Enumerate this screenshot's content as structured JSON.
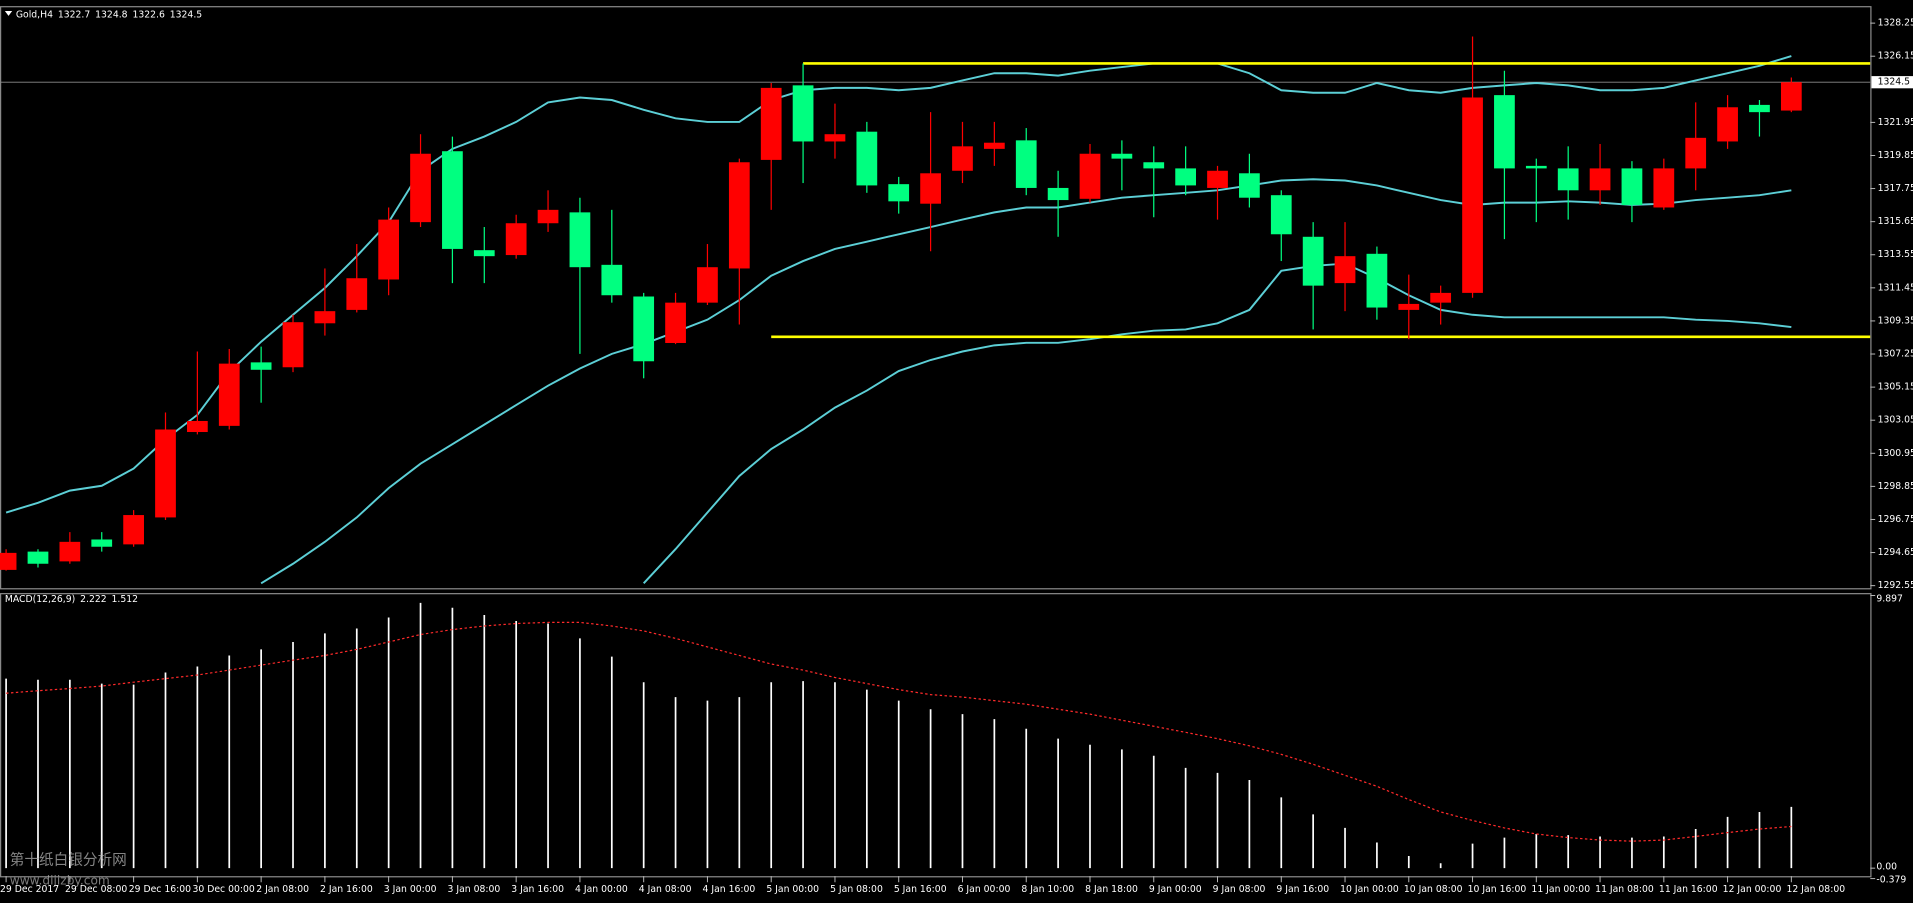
{
  "chart_data": [
    {
      "type": "candlestick",
      "title": "Gold,H4",
      "categories": [
        "29 Dec 2017",
        null,
        "29 Dec 08:00",
        null,
        "29 Dec 16:00",
        null,
        "30 Dec 00:00",
        null,
        "2 Jan 08:00",
        null,
        "2 Jan 16:00",
        null,
        "3 Jan 00:00",
        null,
        "3 Jan 08:00",
        null,
        "3 Jan 16:00",
        null,
        "4 Jan 00:00",
        null,
        "4 Jan 08:00",
        null,
        "4 Jan 16:00",
        null,
        "5 Jan 00:00",
        null,
        "5 Jan 08:00",
        null,
        "5 Jan 16:00",
        null,
        "6 Jan 00:00",
        null,
        "8 Jan 10:00",
        null,
        "8 Jan 18:00",
        null,
        "9 Jan 00:00",
        null,
        "9 Jan 08:00",
        null,
        "9 Jan 16:00",
        null,
        "10 Jan 00:00",
        null,
        "10 Jan 08:00",
        null,
        "10 Jan 16:00",
        null,
        "11 Jan 00:00",
        null,
        "11 Jan 08:00",
        null,
        "11 Jan 16:00",
        null,
        "12 Jan 00:00",
        null,
        "12 Jan 08:00"
      ],
      "open": [
        1293.55,
        1294.71,
        1294.09,
        1295.48,
        1295.17,
        1296.88,
        1302.3,
        1302.69,
        1306.72,
        1306.41,
        1309.2,
        1310.05,
        1311.98,
        1315.62,
        1320.12,
        1313.84,
        1313.53,
        1315.55,
        1316.24,
        1312.91,
        1310.9,
        1307.95,
        1310.51,
        1312.68,
        1319.57,
        1324.3,
        1320.74,
        1321.36,
        1318.03,
        1316.79,
        1318.88,
        1320.27,
        1320.81,
        1317.79,
        1317.1,
        1319.96,
        1319.42,
        1319.03,
        1317.79,
        1318.72,
        1317.33,
        1314.69,
        1311.75,
        1313.61,
        1310.05,
        1310.51,
        1311.13,
        1323.68,
        1319.19,
        1319.03,
        1317.64,
        1319.03,
        1316.55,
        1319.03,
        1320.74,
        1323.06,
        1322.7
      ],
      "high": [
        1294.86,
        1294.86,
        1295.95,
        1295.95,
        1297.34,
        1303.54,
        1307.41,
        1307.57,
        1307.72,
        1309.74,
        1312.68,
        1314.23,
        1316.55,
        1321.2,
        1321.05,
        1315.31,
        1316.09,
        1317.64,
        1317.17,
        1316.4,
        1311.13,
        1311.13,
        1314.23,
        1319.65,
        1324.45,
        1325.69,
        1323.14,
        1321.98,
        1318.49,
        1322.6,
        1321.98,
        1321.98,
        1321.59,
        1318.88,
        1320.58,
        1320.81,
        1320.43,
        1320.43,
        1319.19,
        1319.96,
        1317.64,
        1315.62,
        1315.62,
        1314.07,
        1312.29,
        1311.59,
        1327.4,
        1325.23,
        1319.65,
        1320.43,
        1320.58,
        1319.49,
        1319.65,
        1323.22,
        1323.68,
        1323.37,
        1324.8
      ],
      "low": [
        1293.5,
        1293.7,
        1293.94,
        1294.71,
        1295.02,
        1296.72,
        1302.15,
        1302.46,
        1304.16,
        1306.1,
        1308.42,
        1309.89,
        1310.98,
        1315.31,
        1311.75,
        1311.75,
        1313.3,
        1315.0,
        1307.26,
        1310.51,
        1305.71,
        1307.88,
        1310.36,
        1309.12,
        1316.4,
        1318.1,
        1319.65,
        1317.48,
        1316.16,
        1313.77,
        1318.1,
        1319.19,
        1317.33,
        1314.69,
        1316.86,
        1317.64,
        1315.93,
        1317.33,
        1315.78,
        1316.55,
        1313.15,
        1308.81,
        1309.97,
        1309.43,
        1308.19,
        1309.12,
        1310.82,
        1314.54,
        1315.62,
        1315.78,
        1316.71,
        1315.62,
        1316.4,
        1317.64,
        1320.27,
        1321.05,
        1322.6
      ],
      "close": [
        1294.63,
        1293.94,
        1295.33,
        1295.02,
        1297.03,
        1302.46,
        1303.0,
        1306.64,
        1306.25,
        1309.27,
        1309.97,
        1312.06,
        1315.78,
        1319.96,
        1313.92,
        1313.46,
        1315.55,
        1316.4,
        1312.76,
        1310.98,
        1306.79,
        1310.51,
        1312.76,
        1319.42,
        1324.14,
        1320.74,
        1321.2,
        1317.95,
        1316.94,
        1318.72,
        1320.43,
        1320.66,
        1317.79,
        1317.02,
        1319.96,
        1319.65,
        1319.03,
        1317.95,
        1318.88,
        1317.17,
        1314.85,
        1311.59,
        1313.46,
        1310.2,
        1310.43,
        1311.13,
        1323.53,
        1319.03,
        1319.03,
        1317.64,
        1319.03,
        1316.71,
        1319.03,
        1320.97,
        1322.91,
        1322.6,
        1324.5
      ],
      "up_color": "#ff0000",
      "down_color": "#00ff80",
      "overlays": [
        {
          "color": "#5ccfd6",
          "values": [
            1297.19,
            1297.81,
            1298.58,
            1298.89,
            1299.98,
            1301.84,
            1303.39,
            1306.1,
            1308.03,
            1309.74,
            1311.44,
            1313.46,
            1315.62,
            1318.88,
            1320.27,
            1321.05,
            1321.98,
            1323.22,
            1323.53,
            1323.37,
            1322.75,
            1322.21,
            1321.98,
            1321.98,
            1323.37,
            1323.99,
            1324.14,
            1324.14,
            1323.99,
            1324.14,
            1324.61,
            1325.07,
            1325.07,
            1324.92,
            1325.23,
            1325.46,
            1325.69,
            1325.69,
            1325.69,
            1325.07,
            1323.99,
            1323.83,
            1323.83,
            1324.45,
            1323.99,
            1323.83,
            1324.14,
            1324.3,
            1324.45,
            1324.3,
            1323.99,
            1323.99,
            1324.14,
            1324.61,
            1325.07,
            1325.54,
            1326.16
          ]
        },
        {
          "color": "#5ccfd6",
          "values": [
            null,
            null,
            null,
            null,
            null,
            null,
            null,
            null,
            1292.7,
            1293.94,
            1295.33,
            1296.88,
            1298.74,
            1300.29,
            1301.53,
            1302.77,
            1304.01,
            1305.24,
            1306.33,
            1307.26,
            1307.88,
            1308.65,
            1309.43,
            1310.67,
            1312.22,
            1313.15,
            1313.92,
            1314.38,
            1314.85,
            1315.31,
            1315.78,
            1316.24,
            1316.55,
            1316.55,
            1316.86,
            1317.17,
            1317.33,
            1317.48,
            1317.64,
            1317.95,
            1318.26,
            1318.34,
            1318.26,
            1317.95,
            1317.48,
            1317.02,
            1316.71,
            1316.86,
            1316.86,
            1316.94,
            1316.86,
            1316.71,
            1316.79,
            1317.02,
            1317.17,
            1317.33,
            1317.64
          ]
        },
        {
          "color": "#5ccfd6",
          "values": [
            null,
            null,
            null,
            null,
            null,
            null,
            null,
            null,
            null,
            null,
            null,
            null,
            null,
            null,
            null,
            null,
            null,
            null,
            null,
            null,
            1292.7,
            1294.87,
            1297.19,
            1299.51,
            1301.22,
            1302.46,
            1303.85,
            1304.93,
            1306.17,
            1306.87,
            1307.41,
            1307.8,
            1307.96,
            1307.96,
            1308.19,
            1308.5,
            1308.73,
            1308.81,
            1309.2,
            1310.05,
            1312.53,
            1312.84,
            1312.99,
            1312.06,
            1310.98,
            1310.05,
            1309.74,
            1309.58,
            1309.58,
            1309.58,
            1309.58,
            1309.58,
            1309.58,
            1309.43,
            1309.35,
            1309.2,
            1308.96
          ]
        }
      ],
      "hlines": [
        {
          "value": 1325.69,
          "from": 25,
          "color": "#ffff00"
        },
        {
          "value": 1308.34,
          "from": 24,
          "color": "#ffff00"
        }
      ],
      "ylim": [
        1292.39,
        1329.33
      ],
      "yticks": [
        1328.25,
        1326.15,
        1321.95,
        1319.85,
        1317.75,
        1315.65,
        1313.55,
        1311.45,
        1309.35,
        1307.25,
        1305.15,
        1303.05,
        1300.95,
        1298.85,
        1296.75,
        1294.65,
        1292.55
      ]
    },
    {
      "type": "macd",
      "title": "MACD(12,26,9)",
      "series": [
        {
          "color": "#ffffff",
          "values": [
            6.88,
            6.84,
            6.84,
            6.7,
            6.66,
            7.1,
            7.32,
            7.72,
            7.94,
            8.21,
            8.52,
            8.7,
            9.1,
            9.63,
            9.45,
            9.19,
            8.97,
            8.88,
            8.34,
            7.68,
            6.75,
            6.21,
            6.08,
            6.21,
            6.75,
            6.79,
            6.75,
            6.48,
            6.08,
            5.77,
            5.59,
            5.41,
            5.06,
            4.7,
            4.48,
            4.31,
            4.08,
            3.64,
            3.46,
            3.2,
            2.57,
            1.95,
            1.46,
            0.93,
            0.44,
            0.18,
            0.89,
            1.11,
            1.24,
            1.2,
            1.15,
            1.11,
            1.15,
            1.42,
            1.86,
            2.04,
            2.222
          ]
        },
        {
          "color": "#ff2a2a",
          "values": [
            6.35,
            6.44,
            6.52,
            6.61,
            6.75,
            6.88,
            7.01,
            7.19,
            7.37,
            7.55,
            7.72,
            7.94,
            8.21,
            8.48,
            8.66,
            8.79,
            8.88,
            8.92,
            8.92,
            8.79,
            8.61,
            8.34,
            8.03,
            7.72,
            7.41,
            7.19,
            6.92,
            6.7,
            6.48,
            6.3,
            6.21,
            6.08,
            5.95,
            5.77,
            5.59,
            5.37,
            5.15,
            4.93,
            4.7,
            4.44,
            4.13,
            3.77,
            3.37,
            2.97,
            2.49,
            2.04,
            1.73,
            1.46,
            1.24,
            1.11,
            1.02,
            0.98,
            1.02,
            1.15,
            1.29,
            1.42,
            1.512
          ]
        }
      ],
      "ylim": [
        -0.379,
        9.897
      ],
      "yticks": [
        9.897,
        {
          "value": 0,
          "label": "0.00"
        },
        -0.379
      ]
    }
  ],
  "watermark": {
    "text": "第十纸白银分析网",
    "url": "www.dijizby.com"
  }
}
